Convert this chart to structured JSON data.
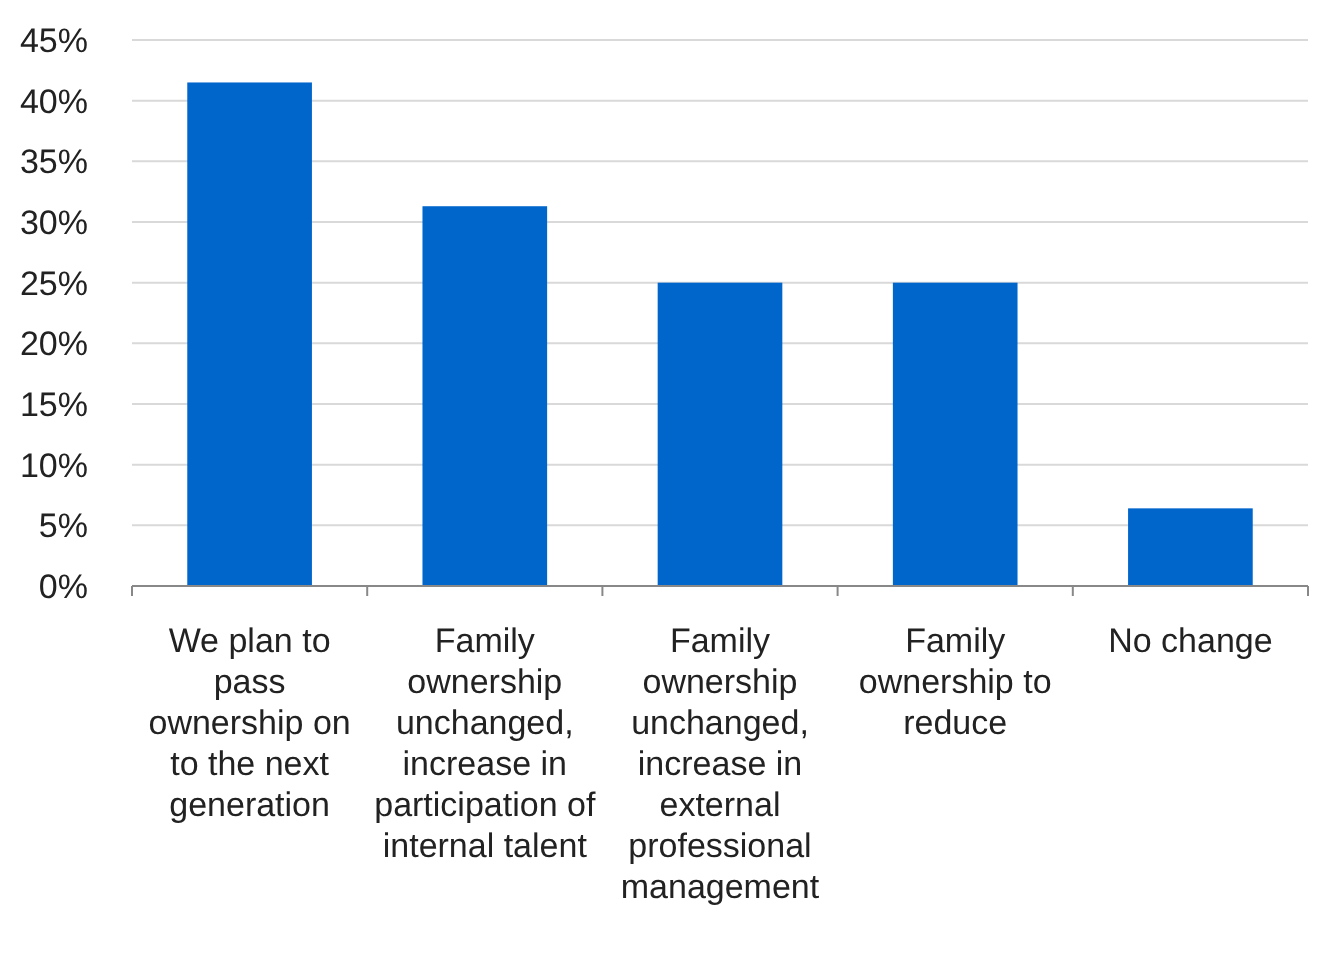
{
  "chart_data": {
    "type": "bar",
    "categories": [
      "We plan to pass ownership on to the next generation",
      "Family ownership unchanged, increase in participation of internal talent",
      "Family ownership unchanged, increase in external professional management",
      "Family ownership to reduce",
      "No change"
    ],
    "values": [
      41.5,
      31.3,
      25,
      25,
      6.4
    ],
    "color": "#0066cc",
    "ylim": [
      0,
      45
    ],
    "yticks": [
      {
        "value": 0,
        "label": "0%"
      },
      {
        "value": 5,
        "label": "5%"
      },
      {
        "value": 10,
        "label": "10%"
      },
      {
        "value": 15,
        "label": "15%"
      },
      {
        "value": 20,
        "label": "20%"
      },
      {
        "value": 25,
        "label": "25%"
      },
      {
        "value": 30,
        "label": "30%"
      },
      {
        "value": 35,
        "label": "35%"
      },
      {
        "value": 40,
        "label": "40%"
      },
      {
        "value": 45,
        "label": "45%"
      }
    ],
    "grid": "y"
  }
}
